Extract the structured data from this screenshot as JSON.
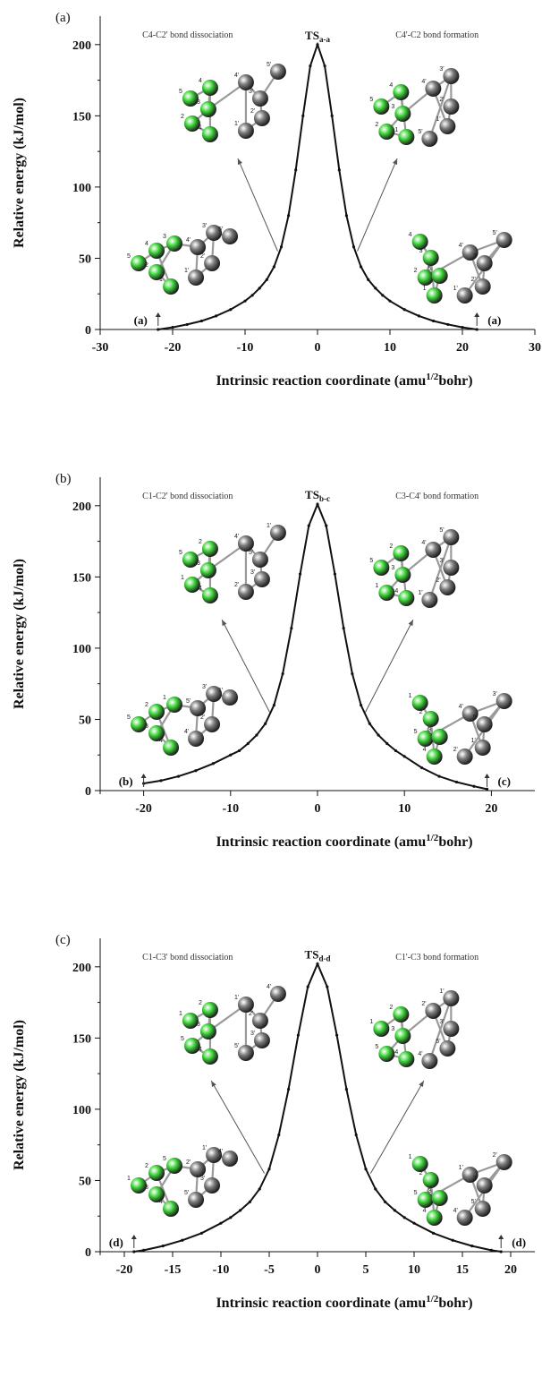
{
  "chart_data": [
    {
      "type": "line",
      "panel_label": "(a)",
      "ts_label_main": "TS",
      "ts_label_sub": "a-a",
      "xlabel": "Intrinsic reaction coordinate (amu",
      "xlabel_sup": "1/2",
      "xlabel_end": "bohr)",
      "ylabel": "Relative energy (kJ/mol)",
      "xlim": [
        -30,
        30
      ],
      "ylim": [
        0,
        220
      ],
      "xticks": [
        -30,
        -20,
        -10,
        0,
        10,
        20,
        30
      ],
      "yticks": [
        0,
        50,
        100,
        150,
        200
      ],
      "left_annotation": "C4-C2' bond dissociation",
      "right_annotation": "C4'-C2 bond formation",
      "left_end_label": "(a)",
      "right_end_label": "(a)",
      "series": [
        {
          "x": [
            -22.0,
            -20,
            -18,
            -16,
            -14,
            -12,
            -10,
            -9,
            -8,
            -7,
            -6,
            -5,
            -4,
            -3,
            -2,
            -1,
            0,
            1,
            2,
            3,
            4,
            5,
            6,
            7,
            8,
            9,
            10,
            12,
            14,
            16,
            18,
            20,
            22.0
          ],
          "y": [
            0,
            1.5,
            3.5,
            6,
            9.5,
            14,
            20,
            24,
            29,
            35,
            44,
            58,
            80,
            112,
            150,
            185,
            200,
            185,
            150,
            112,
            80,
            58,
            44,
            35,
            29,
            24,
            20,
            14,
            9.5,
            6,
            3.5,
            1.5,
            0
          ]
        }
      ],
      "molecule_left_top": {
        "atoms": [
          {
            "label": "5",
            "color": "green"
          },
          {
            "label": "4",
            "color": "green"
          },
          {
            "label": "3",
            "color": "green"
          },
          {
            "label": "2",
            "color": "green"
          },
          {
            "label": "1",
            "color": "green"
          },
          {
            "label": "4'",
            "color": "gray"
          },
          {
            "label": "3'",
            "color": "gray"
          },
          {
            "label": "2'",
            "color": "gray"
          },
          {
            "label": "1'",
            "color": "gray"
          },
          {
            "label": "5'",
            "color": "gray"
          }
        ]
      },
      "molecule_right_top": {
        "atoms": [
          {
            "label": "5",
            "color": "green"
          },
          {
            "label": "4",
            "color": "green"
          },
          {
            "label": "3",
            "color": "green"
          },
          {
            "label": "2",
            "color": "green"
          },
          {
            "label": "1",
            "color": "green"
          },
          {
            "label": "4'",
            "color": "gray"
          },
          {
            "label": "3'",
            "color": "gray"
          },
          {
            "label": "2'",
            "color": "gray"
          },
          {
            "label": "1'",
            "color": "gray"
          },
          {
            "label": "5'",
            "color": "gray"
          }
        ]
      },
      "molecule_left_bottom": {
        "atoms": [
          {
            "label": "5",
            "color": "green"
          },
          {
            "label": "4",
            "color": "green"
          },
          {
            "label": "3",
            "color": "green"
          },
          {
            "label": "2",
            "color": "green"
          },
          {
            "label": "1",
            "color": "green"
          },
          {
            "label": "4'",
            "color": "gray"
          },
          {
            "label": "3'",
            "color": "gray"
          },
          {
            "label": "2'",
            "color": "gray"
          },
          {
            "label": "1'",
            "color": "gray"
          },
          {
            "label": "5'",
            "color": "gray"
          }
        ]
      },
      "molecule_right_bottom": {
        "atoms": [
          {
            "label": "4",
            "color": "green"
          },
          {
            "label": "3",
            "color": "green"
          },
          {
            "label": "2",
            "color": "green"
          },
          {
            "label": "5",
            "color": "green"
          },
          {
            "label": "1",
            "color": "green"
          },
          {
            "label": "4'",
            "color": "gray"
          },
          {
            "label": "5'",
            "color": "gray"
          },
          {
            "label": "3'",
            "color": "gray"
          },
          {
            "label": "2'",
            "color": "gray"
          },
          {
            "label": "1'",
            "color": "gray"
          }
        ]
      }
    },
    {
      "type": "line",
      "panel_label": "(b)",
      "ts_label_main": "TS",
      "ts_label_sub": "b-c",
      "xlabel": "Intrinsic reaction coordinate (amu",
      "xlabel_sup": "1/2",
      "xlabel_end": "bohr)",
      "ylabel": "Relative energy (kJ/mol)",
      "xlim": [
        -25,
        25
      ],
      "ylim": [
        0,
        220
      ],
      "xticks": [
        -20,
        -10,
        0,
        10,
        20
      ],
      "yticks": [
        0,
        50,
        100,
        150,
        200
      ],
      "left_annotation": "C1-C2' bond dissociation",
      "right_annotation": "C3-C4' bond formation",
      "left_end_label": "(b)",
      "right_end_label": "(c)",
      "series": [
        {
          "x": [
            -20.0,
            -18,
            -16,
            -14,
            -12,
            -10,
            -9,
            -8,
            -7,
            -6,
            -5,
            -4,
            -3,
            -2,
            -1,
            0,
            1,
            2,
            3,
            4,
            5,
            6,
            7,
            8,
            9,
            10,
            12,
            14,
            16,
            18,
            19.5
          ],
          "y": [
            5,
            7,
            10,
            14,
            19,
            25,
            28,
            33,
            39,
            47,
            60,
            82,
            114,
            152,
            186,
            201,
            186,
            152,
            114,
            82,
            60,
            47,
            39,
            33,
            28,
            24,
            16,
            10,
            6,
            3,
            1
          ]
        }
      ],
      "molecule_left_top": {
        "atoms": [
          {
            "label": "5",
            "color": "green"
          },
          {
            "label": "2",
            "color": "green"
          },
          {
            "label": "3",
            "color": "green"
          },
          {
            "label": "1",
            "color": "green"
          },
          {
            "label": "4",
            "color": "green"
          },
          {
            "label": "4'",
            "color": "gray"
          },
          {
            "label": "5'",
            "color": "gray"
          },
          {
            "label": "3'",
            "color": "gray"
          },
          {
            "label": "2'",
            "color": "gray"
          },
          {
            "label": "1'",
            "color": "gray"
          }
        ]
      },
      "molecule_right_top": {
        "atoms": [
          {
            "label": "5",
            "color": "green"
          },
          {
            "label": "2",
            "color": "green"
          },
          {
            "label": "3",
            "color": "green"
          },
          {
            "label": "1",
            "color": "green"
          },
          {
            "label": "4",
            "color": "green"
          },
          {
            "label": "4'",
            "color": "gray"
          },
          {
            "label": "5'",
            "color": "gray"
          },
          {
            "label": "3'",
            "color": "gray"
          },
          {
            "label": "2'",
            "color": "gray"
          },
          {
            "label": "1'",
            "color": "gray"
          }
        ]
      },
      "molecule_left_bottom": {
        "atoms": [
          {
            "label": "5",
            "color": "green"
          },
          {
            "label": "2",
            "color": "green"
          },
          {
            "label": "1",
            "color": "green"
          },
          {
            "label": "3",
            "color": "green"
          },
          {
            "label": "4",
            "color": "green"
          },
          {
            "label": "5'",
            "color": "gray"
          },
          {
            "label": "3'",
            "color": "gray"
          },
          {
            "label": "2'",
            "color": "gray"
          },
          {
            "label": "4'",
            "color": "gray"
          },
          {
            "label": "1'",
            "color": "gray"
          }
        ]
      },
      "molecule_right_bottom": {
        "atoms": [
          {
            "label": "1",
            "color": "green"
          },
          {
            "label": "2",
            "color": "green"
          },
          {
            "label": "5",
            "color": "green"
          },
          {
            "label": "3",
            "color": "green"
          },
          {
            "label": "4",
            "color": "green"
          },
          {
            "label": "4'",
            "color": "gray"
          },
          {
            "label": "3'",
            "color": "gray"
          },
          {
            "label": "5'",
            "color": "gray"
          },
          {
            "label": "1'",
            "color": "gray"
          },
          {
            "label": "2'",
            "color": "gray"
          }
        ]
      }
    },
    {
      "type": "line",
      "panel_label": "(c)",
      "ts_label_main": "TS",
      "ts_label_sub": "d-d",
      "xlabel": "Intrinsic reaction coordinate (amu",
      "xlabel_sup": "1/2",
      "xlabel_end": "bohr)",
      "ylabel": "Relative energy (kJ/mol)",
      "xlim": [
        -22.5,
        22.5
      ],
      "ylim": [
        0,
        220
      ],
      "xticks": [
        -20,
        -15,
        -10,
        -5,
        0,
        5,
        10,
        15,
        20
      ],
      "yticks": [
        0,
        50,
        100,
        150,
        200
      ],
      "left_annotation": "C1-C3' bond dissociation",
      "right_annotation": "C1'-C3 bond formation",
      "left_end_label": "(d)",
      "right_end_label": "(d)",
      "series": [
        {
          "x": [
            -19.0,
            -18,
            -16,
            -14,
            -12,
            -10,
            -9,
            -8,
            -7,
            -6,
            -5,
            -4,
            -3,
            -2,
            -1,
            0,
            1,
            2,
            3,
            4,
            5,
            6,
            7,
            8,
            9,
            10,
            12,
            14,
            16,
            18,
            19.0
          ],
          "y": [
            0,
            1,
            4,
            8,
            13,
            20,
            24,
            29,
            35,
            44,
            58,
            82,
            114,
            152,
            186,
            202,
            186,
            152,
            114,
            82,
            58,
            44,
            35,
            29,
            24,
            20,
            13,
            8,
            4,
            1,
            0
          ]
        }
      ],
      "molecule_left_top": {
        "atoms": [
          {
            "label": "1",
            "color": "green"
          },
          {
            "label": "2",
            "color": "green"
          },
          {
            "label": "3",
            "color": "green"
          },
          {
            "label": "5",
            "color": "green"
          },
          {
            "label": "4",
            "color": "green"
          },
          {
            "label": "1'",
            "color": "gray"
          },
          {
            "label": "2'",
            "color": "gray"
          },
          {
            "label": "3'",
            "color": "gray"
          },
          {
            "label": "5'",
            "color": "gray"
          },
          {
            "label": "4'",
            "color": "gray"
          }
        ]
      },
      "molecule_right_top": {
        "atoms": [
          {
            "label": "1",
            "color": "green"
          },
          {
            "label": "2",
            "color": "green"
          },
          {
            "label": "3",
            "color": "green"
          },
          {
            "label": "5",
            "color": "green"
          },
          {
            "label": "4",
            "color": "green"
          },
          {
            "label": "2'",
            "color": "gray"
          },
          {
            "label": "1'",
            "color": "gray"
          },
          {
            "label": "3'",
            "color": "gray"
          },
          {
            "label": "5'",
            "color": "gray"
          },
          {
            "label": "4'",
            "color": "gray"
          }
        ]
      },
      "molecule_left_bottom": {
        "atoms": [
          {
            "label": "1",
            "color": "green"
          },
          {
            "label": "2",
            "color": "green"
          },
          {
            "label": "5",
            "color": "green"
          },
          {
            "label": "3",
            "color": "green"
          },
          {
            "label": "4",
            "color": "green"
          },
          {
            "label": "2'",
            "color": "gray"
          },
          {
            "label": "1'",
            "color": "gray"
          },
          {
            "label": "3'",
            "color": "gray"
          },
          {
            "label": "5'",
            "color": "gray"
          },
          {
            "label": "4'",
            "color": "gray"
          }
        ]
      },
      "molecule_right_bottom": {
        "atoms": [
          {
            "label": "1",
            "color": "green"
          },
          {
            "label": "2",
            "color": "green"
          },
          {
            "label": "5",
            "color": "green"
          },
          {
            "label": "3",
            "color": "green"
          },
          {
            "label": "4",
            "color": "green"
          },
          {
            "label": "1'",
            "color": "gray"
          },
          {
            "label": "2'",
            "color": "gray"
          },
          {
            "label": "3'",
            "color": "gray"
          },
          {
            "label": "5'",
            "color": "gray"
          },
          {
            "label": "4'",
            "color": "gray"
          }
        ]
      }
    }
  ],
  "colors": {
    "atom_green": "#3ed63a",
    "atom_gray": "#7d7d7d",
    "curve": "#111111"
  }
}
